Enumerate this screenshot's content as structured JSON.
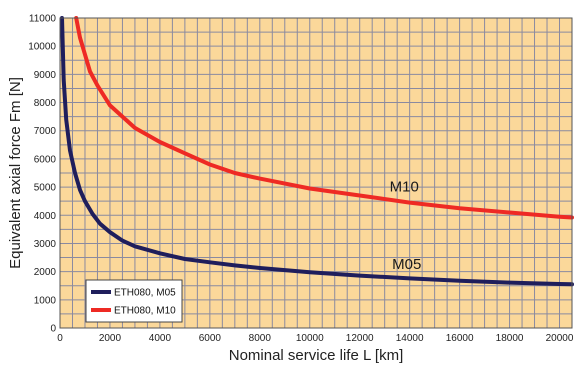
{
  "colors": {
    "plot_background": "#fbd89a",
    "grid": "#8a8aa0",
    "series_m05": "#1f1e5c",
    "series_m10": "#ee2a24"
  },
  "chart_data": {
    "type": "line",
    "xlabel": "Nominal service life L [km]",
    "ylabel": "Equivalent axial force Fm [N]",
    "xlim": [
      0,
      20500
    ],
    "ylim": [
      0,
      11000
    ],
    "x_ticks": [
      0,
      2000,
      4000,
      6000,
      8000,
      10000,
      12000,
      14000,
      16000,
      18000,
      20000
    ],
    "y_ticks": [
      0,
      1000,
      2000,
      3000,
      4000,
      5000,
      6000,
      7000,
      8000,
      9000,
      10000,
      11000
    ],
    "grid": true,
    "legend_position": "bottom-left",
    "series": [
      {
        "name": "ETH080, M05",
        "curve_label": "M05",
        "color": "#1f1e5c",
        "x": [
          80,
          150,
          250,
          400,
          600,
          800,
          1000,
          1300,
          1600,
          2000,
          2500,
          3000,
          4000,
          5000,
          6000,
          7000,
          8000,
          10000,
          12000,
          14000,
          16000,
          18000,
          20000,
          20500
        ],
        "y": [
          11000,
          8800,
          7400,
          6300,
          5500,
          4900,
          4500,
          4050,
          3700,
          3400,
          3100,
          2900,
          2650,
          2450,
          2330,
          2220,
          2130,
          1980,
          1860,
          1760,
          1680,
          1610,
          1560,
          1550
        ]
      },
      {
        "name": "ETH080, M10",
        "curve_label": "M10",
        "color": "#ee2a24",
        "x": [
          650,
          800,
          1000,
          1200,
          1500,
          2000,
          2500,
          3000,
          4000,
          5000,
          6000,
          7000,
          8000,
          10000,
          12000,
          14000,
          16000,
          18000,
          20000,
          20500
        ],
        "y": [
          11000,
          10300,
          9700,
          9100,
          8600,
          7900,
          7500,
          7100,
          6600,
          6200,
          5800,
          5500,
          5300,
          4950,
          4700,
          4450,
          4250,
          4100,
          3950,
          3920
        ]
      }
    ],
    "annotations": [
      {
        "text": "M10",
        "x": 13200,
        "y": 4850
      },
      {
        "text": "M05",
        "x": 13300,
        "y": 2100
      }
    ]
  }
}
